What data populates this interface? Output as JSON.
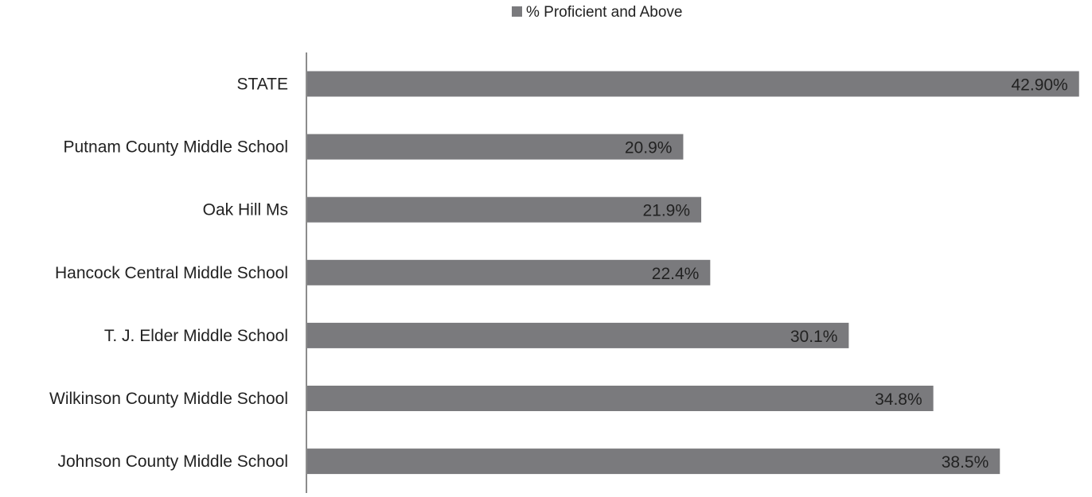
{
  "chart_data": {
    "type": "bar",
    "orientation": "horizontal",
    "categories": [
      "STATE",
      "Putnam County Middle School",
      "Oak Hill Ms",
      "Hancock Central Middle School",
      "T. J. Elder Middle School",
      "Wilkinson County Middle School",
      "Johnson County Middle School"
    ],
    "series": [
      {
        "name": "% Proficient and Above",
        "values": [
          42.9,
          20.9,
          21.9,
          22.4,
          30.1,
          34.8,
          38.5
        ],
        "labels": [
          "42.90%",
          "20.9%",
          "21.9%",
          "22.4%",
          "30.1%",
          "34.8%",
          "38.5%"
        ],
        "color": "#7a7a7d"
      }
    ],
    "xlim": [
      0,
      43
    ],
    "grid": false,
    "legend_position": "top-center",
    "axis_color": "#8c8c8c",
    "text_color": "#222222"
  }
}
